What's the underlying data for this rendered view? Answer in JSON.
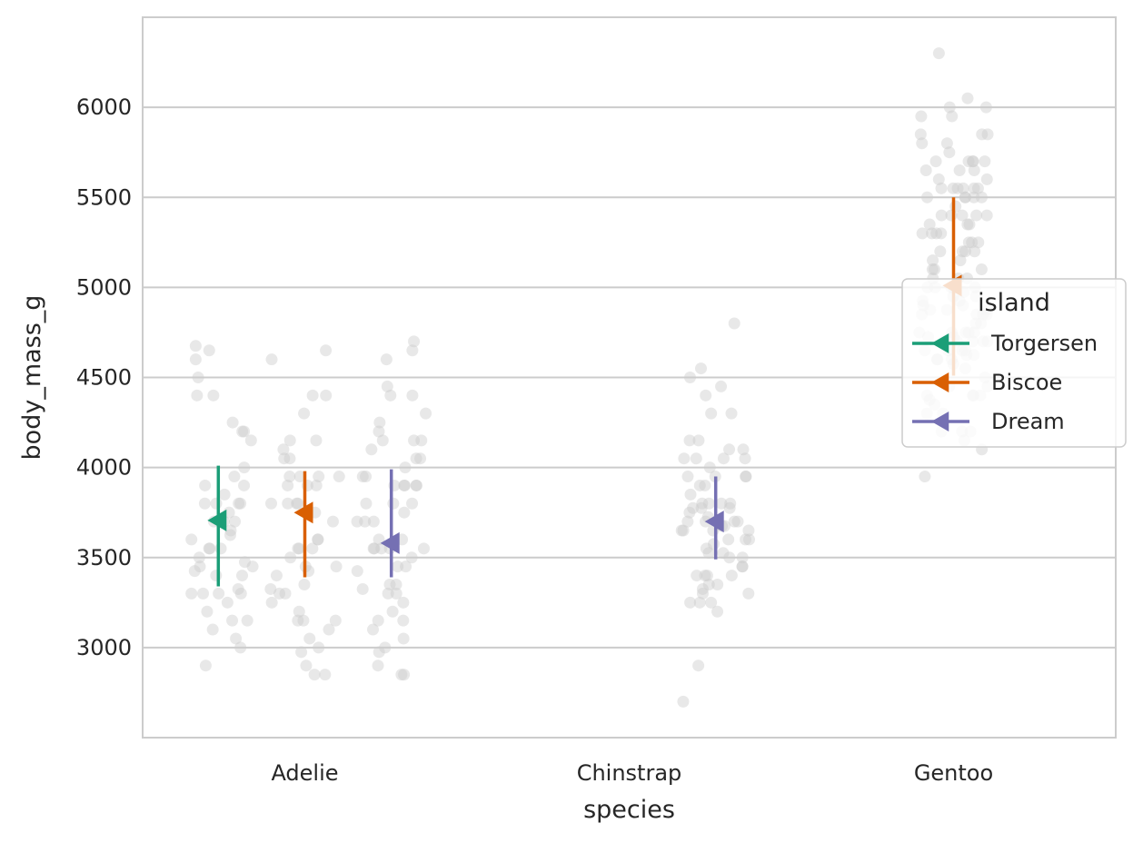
{
  "chart_data": {
    "type": "scatter",
    "subtype": "strip plot with point-estimate error bars",
    "title": "",
    "xlabel": "species",
    "ylabel": "body_mass_g",
    "categories": [
      "Adelie",
      "Chinstrap",
      "Gentoo"
    ],
    "ylim": [
      2500,
      6500
    ],
    "yticks": [
      3000,
      3500,
      4000,
      4500,
      5000,
      5500,
      6000
    ],
    "grid": "horizontal",
    "legend": {
      "title": "island",
      "placement": "center-right",
      "entries": [
        "Torgersen",
        "Biscoe",
        "Dream"
      ]
    },
    "series": [
      {
        "name": "Torgersen",
        "color": "#1b9e77",
        "marker": "triangle-left",
        "points": [
          {
            "category": "Adelie",
            "mean": 3706,
            "lower": 3340,
            "upper": 4010
          }
        ]
      },
      {
        "name": "Biscoe",
        "color": "#d95f02",
        "marker": "triangle-left",
        "points": [
          {
            "category": "Adelie",
            "mean": 3750,
            "lower": 3390,
            "upper": 3980
          },
          {
            "category": "Gentoo",
            "mean": 5010,
            "lower": 4510,
            "upper": 5500
          }
        ]
      },
      {
        "name": "Dream",
        "color": "#7570b3",
        "marker": "triangle-left",
        "points": [
          {
            "category": "Adelie",
            "mean": 3580,
            "lower": 3390,
            "upper": 3990
          },
          {
            "category": "Chinstrap",
            "mean": 3700,
            "lower": 3490,
            "upper": 3950
          }
        ]
      }
    ],
    "strip": {
      "color": "#cccccc",
      "opacity": 0.45,
      "groups": [
        {
          "category": "Adelie",
          "island": "Torgersen",
          "values": [
            3750,
            3800,
            3250,
            3450,
            3650,
            3625,
            4675,
            3475,
            4250,
            3300,
            3700,
            3200,
            3800,
            4400,
            3700,
            3450,
            4500,
            3325,
            4200,
            3400,
            3600,
            3800,
            3950,
            3550,
            3300,
            4650,
            3150,
            3900,
            3100,
            4400,
            3000,
            4600,
            3425,
            2900,
            3550,
            3300,
            4150,
            3400,
            3050,
            3500,
            3700,
            4000,
            3800,
            3900,
            3550,
            4200,
            3150,
            3300,
            3850
          ]
        },
        {
          "category": "Adelie",
          "island": "Biscoe",
          "values": [
            3400,
            3600,
            3800,
            3950,
            3800,
            3800,
            3550,
            3200,
            3150,
            3950,
            3250,
            3900,
            3300,
            3900,
            3325,
            4150,
            3950,
            3550,
            3300,
            4650,
            3150,
            3900,
            3100,
            4400,
            3000,
            4600,
            3425,
            2975,
            3450,
            4150,
            3500,
            4300,
            3450,
            4050,
            2900,
            3700,
            3550,
            3800,
            2850,
            3750,
            3150,
            4400,
            3600,
            4050,
            2850,
            3950,
            3350,
            4100,
            3050
          ]
        },
        {
          "category": "Adelie",
          "island": "Dream",
          "values": [
            3250,
            3900,
            3300,
            3900,
            3325,
            4150,
            3950,
            3550,
            3300,
            4650,
            3150,
            3900,
            3100,
            4400,
            3000,
            4600,
            3425,
            2975,
            3450,
            4150,
            3500,
            4300,
            3450,
            4050,
            2900,
            3700,
            3550,
            3800,
            2850,
            3750,
            3150,
            4400,
            3600,
            4050,
            2850,
            3950,
            3350,
            4100,
            3050,
            4450,
            3600,
            3900,
            3550,
            4150,
            3700,
            4250,
            3700,
            3900,
            3550,
            4000,
            3200,
            4700,
            3800,
            4200,
            3350,
            3550,
            3800
          ]
        },
        {
          "category": "Chinstrap",
          "island": "Dream",
          "values": [
            3500,
            3900,
            3650,
            3525,
            3725,
            3950,
            3250,
            3750,
            4150,
            3700,
            3800,
            3775,
            3700,
            4050,
            3575,
            4050,
            3300,
            3700,
            3450,
            4400,
            3600,
            3400,
            2900,
            3800,
            3300,
            4150,
            3400,
            3800,
            3700,
            4550,
            3200,
            4300,
            3350,
            4100,
            3600,
            3900,
            3850,
            4800,
            2700,
            4500,
            3950,
            3650,
            3550,
            3500,
            3675,
            4450,
            3400,
            4300,
            3250,
            3675,
            3325,
            3950,
            3600,
            4050,
            3350,
            3450,
            3250,
            4050,
            3800,
            3525,
            3950,
            3650,
            3650,
            4000,
            3400,
            3775,
            4100,
            3775
          ]
        },
        {
          "category": "Gentoo",
          "island": "Biscoe",
          "values": [
            4500,
            5700,
            4450,
            5700,
            5400,
            4550,
            4800,
            5200,
            4400,
            5150,
            4650,
            5550,
            4650,
            5850,
            4200,
            5850,
            4150,
            6300,
            4800,
            5350,
            5700,
            5000,
            4400,
            5050,
            5000,
            5100,
            4100,
            5650,
            4600,
            5550,
            5250,
            4700,
            5050,
            6050,
            5150,
            5400,
            4950,
            5250,
            4350,
            5350,
            3950,
            5700,
            4300,
            4750,
            5550,
            4900,
            4200,
            5400,
            5100,
            5300,
            4850,
            5300,
            4400,
            5000,
            4900,
            5050,
            4300,
            5000,
            4450,
            5550,
            4200,
            5300,
            4400,
            5650,
            4700,
            5700,
            4650,
            5800,
            4700,
            5550,
            4750,
            5000,
            5100,
            5200,
            4700,
            5800,
            4600,
            6000,
            4750,
            5950,
            4625,
            5450,
            4725,
            5350,
            4750,
            5600,
            4600,
            5300,
            4875,
            5550,
            4950,
            5400,
            4750,
            5650,
            4850,
            5200,
            4925,
            4875,
            4625,
            5250,
            4850,
            5600,
            4975,
            5500,
            4725,
            5500,
            4700,
            5500,
            4575,
            5500,
            5000,
            5950,
            4650,
            5500,
            4375,
            5850,
            4875,
            6000,
            4925,
            4850,
            5750,
            5200,
            5400
          ]
        }
      ]
    }
  }
}
